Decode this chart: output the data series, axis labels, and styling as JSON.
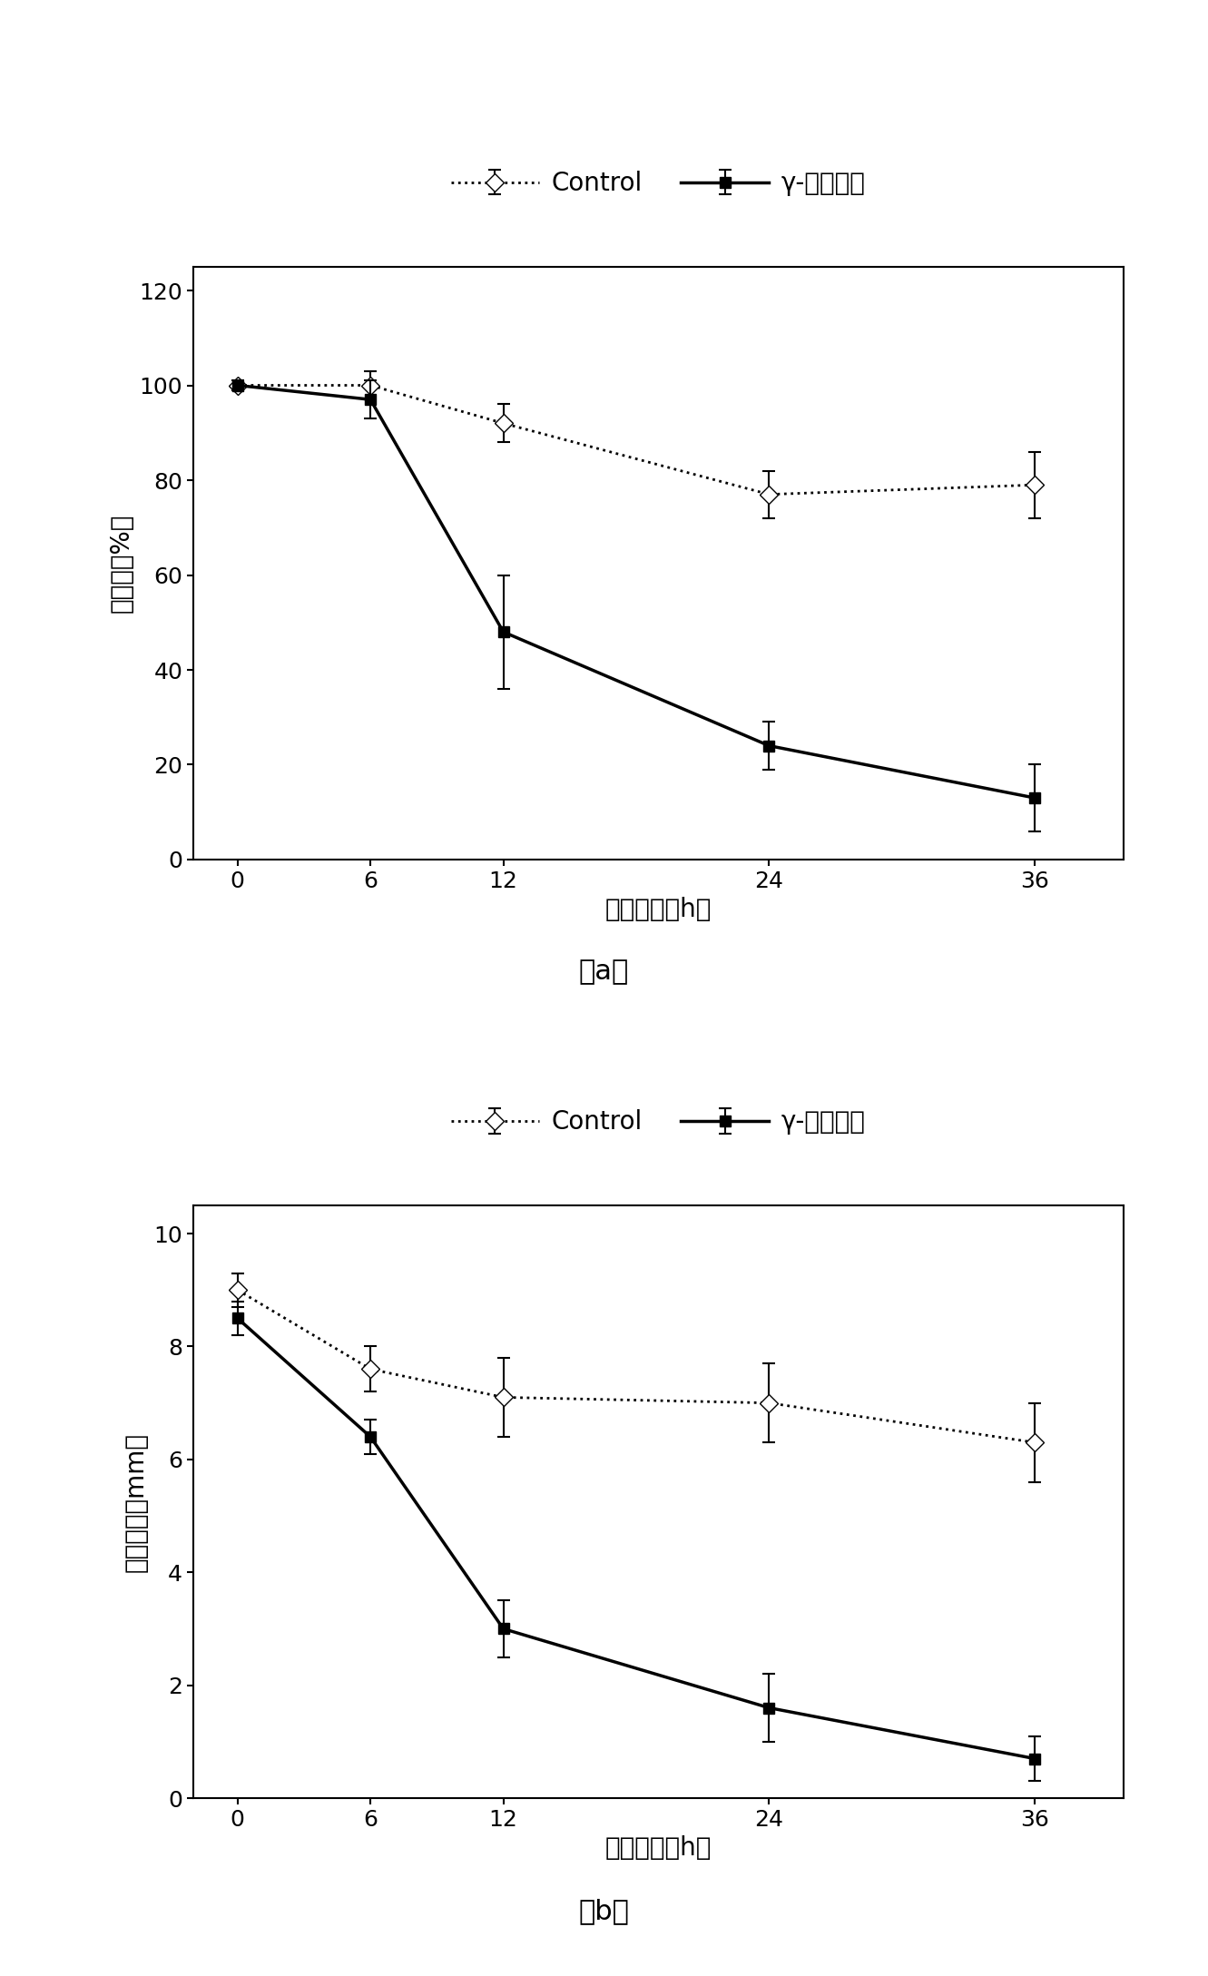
{
  "fig_width": 13.31,
  "fig_height": 21.77,
  "dpi": 100,
  "chart_a": {
    "x": [
      0,
      6,
      12,
      24,
      36
    ],
    "control_y": [
      100,
      100,
      92,
      77,
      79
    ],
    "control_yerr": [
      1,
      3,
      4,
      5,
      7
    ],
    "treatment_y": [
      100,
      97,
      48,
      24,
      13
    ],
    "treatment_yerr": [
      1,
      4,
      12,
      5,
      7
    ],
    "ylabel": "发病率（%）",
    "xlabel": "诱导时间（h）",
    "ylim": [
      0,
      125
    ],
    "yticks": [
      0,
      20,
      40,
      60,
      80,
      100,
      120
    ],
    "label": "（a）"
  },
  "chart_b": {
    "x": [
      0,
      6,
      12,
      24,
      36
    ],
    "control_y": [
      9.0,
      7.6,
      7.1,
      7.0,
      6.3
    ],
    "control_yerr": [
      0.3,
      0.4,
      0.7,
      0.7,
      0.7
    ],
    "treatment_y": [
      8.5,
      6.4,
      3.0,
      1.6,
      0.7
    ],
    "treatment_yerr": [
      0.3,
      0.3,
      0.5,
      0.6,
      0.4
    ],
    "ylabel": "病斑直径（mm）",
    "xlabel": "诱导时间（h）",
    "ylim": [
      0,
      10.5
    ],
    "yticks": [
      0,
      2,
      4,
      6,
      8,
      10
    ],
    "label": "（b）"
  },
  "legend_control": "Control",
  "legend_treatment": "γ-氨基丁酸",
  "line_color": "#000000",
  "bg_color": "#ffffff"
}
